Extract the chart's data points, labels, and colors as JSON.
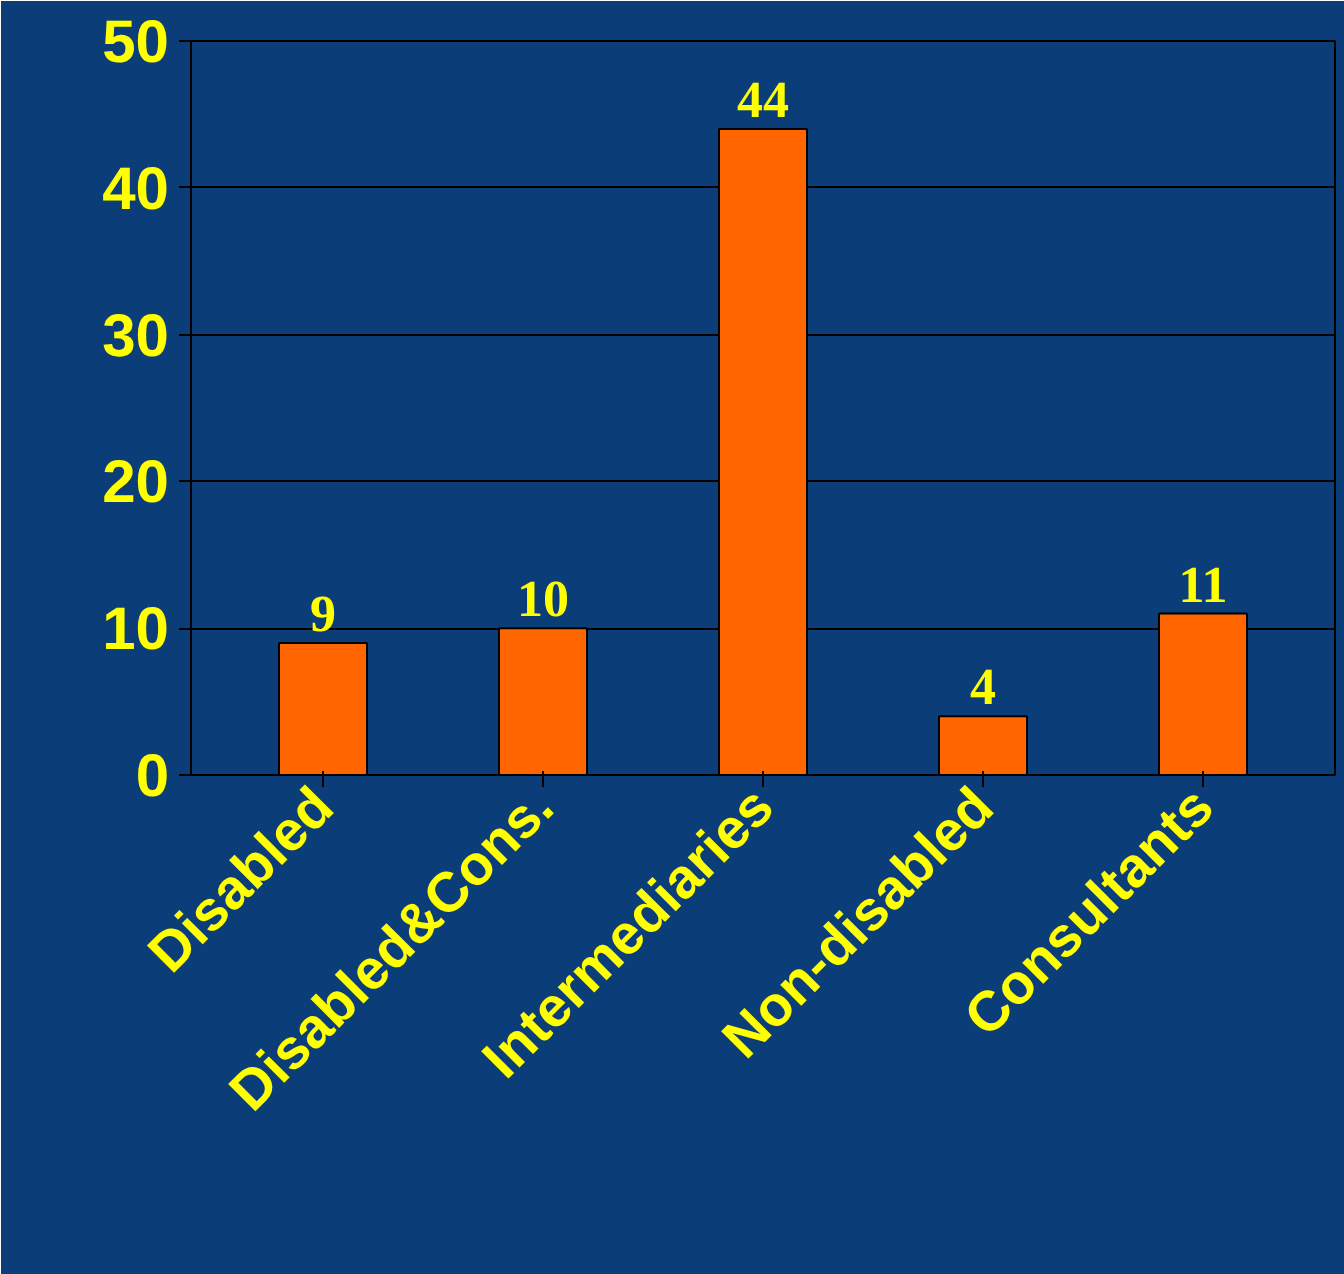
{
  "chart_data": {
    "type": "bar",
    "categories": [
      "Disabled",
      "Disabled&Cons.",
      "Intermediaries",
      "Non-disabled",
      "Consultants"
    ],
    "values": [
      9,
      10,
      44,
      4,
      11
    ],
    "color": "#ff6600",
    "ylim": [
      0,
      50
    ],
    "yticks": [
      0,
      10,
      20,
      30,
      40,
      50
    ],
    "grid": "y",
    "data_labels": true
  }
}
